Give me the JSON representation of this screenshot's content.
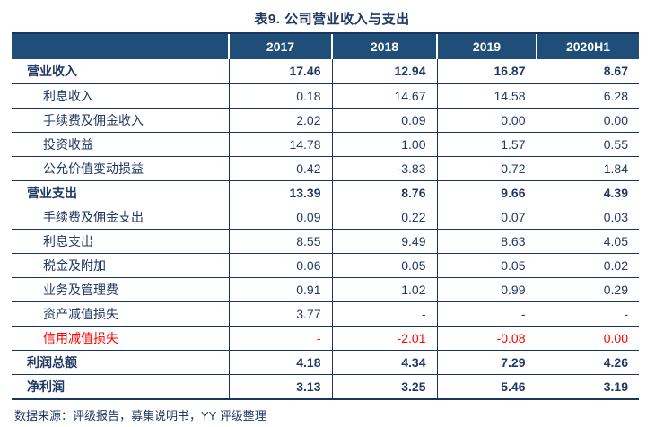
{
  "title": "表9. 公司营业收入与支出",
  "columns": [
    "2017",
    "2018",
    "2019",
    "2020H1"
  ],
  "rows": [
    {
      "label": "营业收入",
      "values": [
        "17.46",
        "12.94",
        "16.87",
        "8.67"
      ]
    },
    {
      "label": "利息收入",
      "values": [
        "0.18",
        "14.67",
        "14.58",
        "6.28"
      ]
    },
    {
      "label": "手续费及佣金收入",
      "values": [
        "2.02",
        "0.09",
        "0.00",
        "0.00"
      ]
    },
    {
      "label": "投资收益",
      "values": [
        "14.78",
        "1.00",
        "1.57",
        "0.55"
      ]
    },
    {
      "label": "公允价值变动损益",
      "values": [
        "0.42",
        "-3.83",
        "0.72",
        "1.84"
      ]
    },
    {
      "label": "营业支出",
      "values": [
        "13.39",
        "8.76",
        "9.66",
        "4.39"
      ]
    },
    {
      "label": "手续费及佣金支出",
      "values": [
        "0.09",
        "0.22",
        "0.07",
        "0.03"
      ]
    },
    {
      "label": "利息支出",
      "values": [
        "8.55",
        "9.49",
        "8.63",
        "4.05"
      ]
    },
    {
      "label": "税金及附加",
      "values": [
        "0.06",
        "0.05",
        "0.05",
        "0.02"
      ]
    },
    {
      "label": "业务及管理费",
      "values": [
        "0.91",
        "1.02",
        "0.99",
        "0.29"
      ]
    },
    {
      "label": "资产减值损失",
      "values": [
        "3.77",
        "-",
        "-",
        "-"
      ]
    },
    {
      "label": "信用减值损失",
      "values": [
        "-",
        "-2.01",
        "-0.08",
        "0.00"
      ]
    },
    {
      "label": "利润总额",
      "values": [
        "4.18",
        "4.34",
        "7.29",
        "4.26"
      ]
    },
    {
      "label": "净利润",
      "values": [
        "3.13",
        "3.25",
        "5.46",
        "3.19"
      ]
    }
  ],
  "source_note": "数据来源：评级报告，募集说明书，YY 评级整理",
  "colors": {
    "header_bg": "#1F4E79",
    "header_text": "#FFFFFF",
    "body_text": "#1F3864",
    "border": "#17375E",
    "negative_red": "#FF0000"
  }
}
